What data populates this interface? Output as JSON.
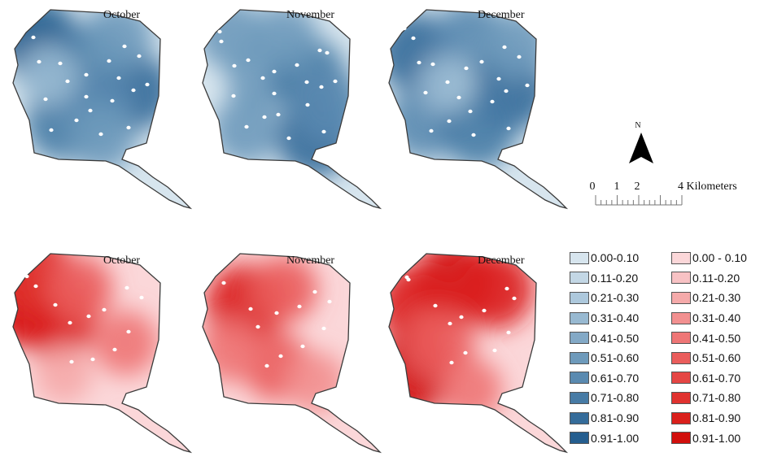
{
  "panels": [
    {
      "title": "October",
      "palette": "blue",
      "hotspots": [
        [
          0.18,
          0.22,
          0.95
        ],
        [
          0.5,
          0.35,
          0.75
        ],
        [
          0.8,
          0.55,
          0.85
        ],
        [
          0.35,
          0.75,
          0.8
        ],
        [
          0.55,
          0.65,
          0.7
        ],
        [
          0.7,
          0.2,
          0.6
        ],
        [
          0.25,
          0.45,
          0.35
        ],
        [
          0.6,
          0.85,
          0.55
        ]
      ]
    },
    {
      "title": "November",
      "palette": "blue",
      "hotspots": [
        [
          0.2,
          0.18,
          0.55
        ],
        [
          0.4,
          0.45,
          0.6
        ],
        [
          0.7,
          0.45,
          0.8
        ],
        [
          0.75,
          0.85,
          0.85
        ],
        [
          0.3,
          0.8,
          0.55
        ],
        [
          0.55,
          0.2,
          0.5
        ],
        [
          0.85,
          0.65,
          0.65
        ]
      ]
    },
    {
      "title": "December",
      "palette": "blue",
      "hotspots": [
        [
          0.2,
          0.3,
          0.85
        ],
        [
          0.55,
          0.2,
          0.65
        ],
        [
          0.8,
          0.55,
          0.9
        ],
        [
          0.25,
          0.75,
          0.7
        ],
        [
          0.6,
          0.8,
          0.75
        ],
        [
          0.4,
          0.5,
          0.3
        ],
        [
          0.85,
          0.25,
          0.55
        ]
      ]
    },
    {
      "title": "October",
      "palette": "red",
      "hotspots": [
        [
          0.1,
          0.35,
          0.95
        ],
        [
          0.3,
          0.45,
          0.9
        ],
        [
          0.15,
          0.12,
          0.8
        ],
        [
          0.45,
          0.25,
          0.5
        ],
        [
          0.75,
          0.6,
          0.45
        ],
        [
          0.35,
          0.8,
          0.25
        ]
      ]
    },
    {
      "title": "November",
      "palette": "red",
      "hotspots": [
        [
          0.3,
          0.35,
          0.9
        ],
        [
          0.55,
          0.25,
          0.5
        ],
        [
          0.5,
          0.75,
          0.55
        ],
        [
          0.75,
          0.85,
          0.35
        ],
        [
          0.2,
          0.65,
          0.4
        ]
      ]
    },
    {
      "title": "December",
      "palette": "red",
      "hotspots": [
        [
          0.45,
          0.2,
          0.95
        ],
        [
          0.7,
          0.25,
          0.85
        ],
        [
          0.2,
          0.35,
          0.85
        ],
        [
          0.18,
          0.8,
          0.95
        ],
        [
          0.35,
          0.6,
          0.6
        ],
        [
          0.55,
          0.9,
          0.4
        ]
      ]
    }
  ],
  "colors": {
    "blue": [
      "#d7e5ee",
      "#c3d7e5",
      "#adc8dc",
      "#98b9d1",
      "#83a9c6",
      "#6e9abb",
      "#5a8ab0",
      "#477ba5",
      "#356c9a",
      "#255e8f"
    ],
    "red": [
      "#fbd7d9",
      "#f8c2c4",
      "#f5aaaa",
      "#f29090",
      "#ee7676",
      "#ea5d5c",
      "#e54644",
      "#e0322f",
      "#da201c",
      "#d10f0c"
    ],
    "outline": "#3b3b3b",
    "sample_point": "#ffffff"
  },
  "scale_bar": {
    "labels": [
      "0",
      "1",
      "2",
      "4 Kilometers"
    ]
  },
  "north_arrow": {
    "label": "N"
  },
  "legend_blue": [
    "0.00-0.10",
    "0.11-0.20",
    "0.21-0.30",
    "0.31-0.40",
    "0.41-0.50",
    "0.51-0.60",
    "0.61-0.70",
    "0.71-0.80",
    "0.81-0.90",
    "0.91-1.00"
  ],
  "legend_red": [
    "0.00 - 0.10",
    "0.11-0.20",
    "0.21-0.30",
    "0.31-0.40",
    "0.41-0.50",
    "0.51-0.60",
    "0.61-0.70",
    "0.71-0.80",
    "0.81-0.90",
    "0.91-1.00"
  ]
}
